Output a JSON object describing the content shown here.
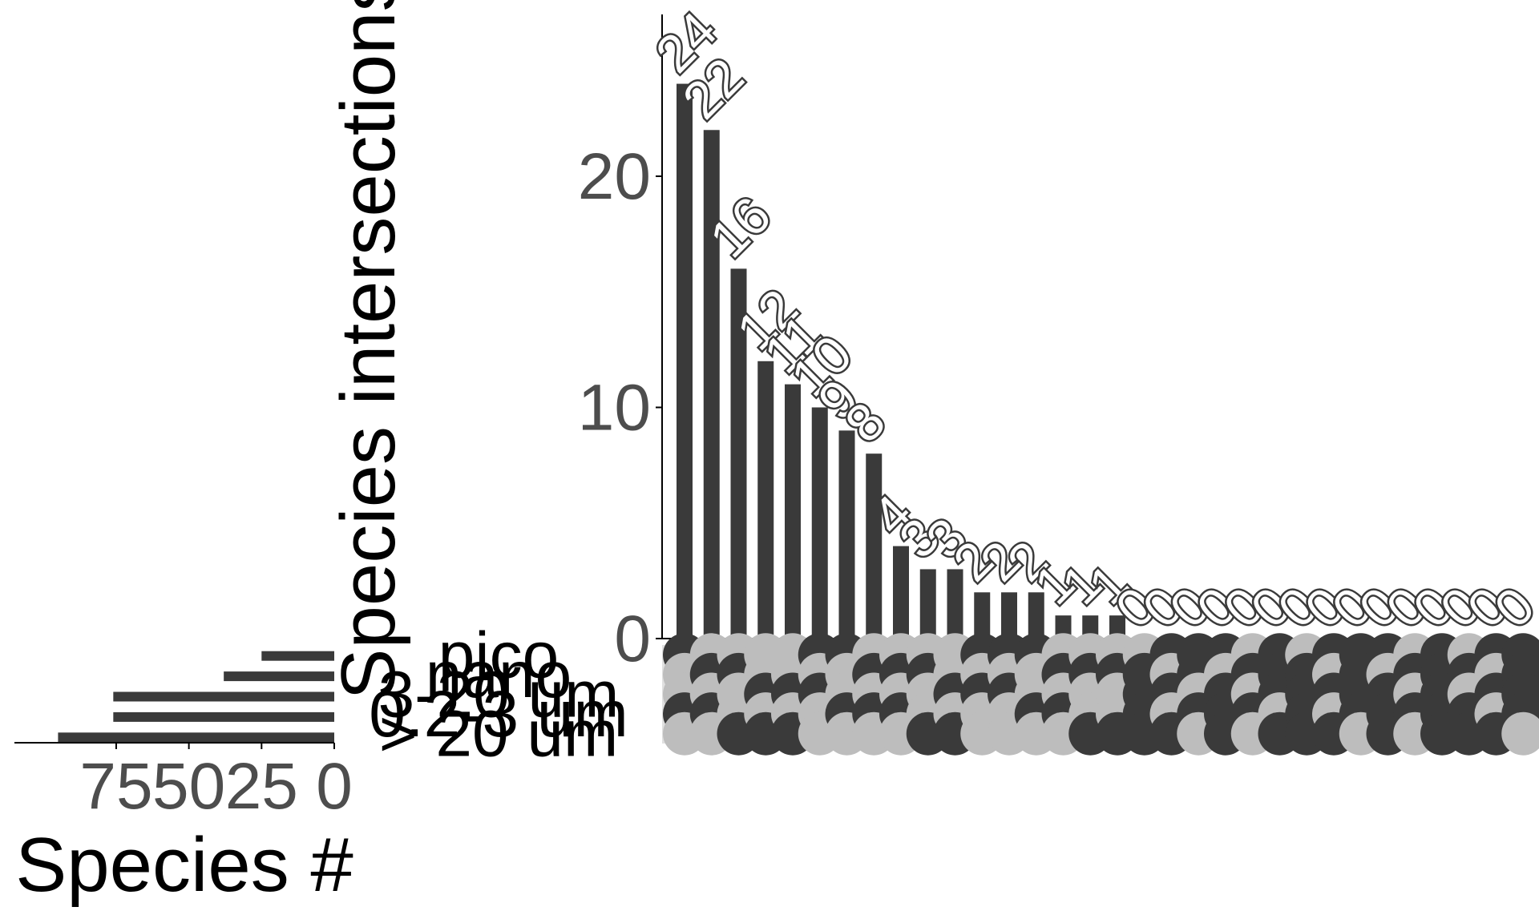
{
  "chart_data": {
    "type": "upset",
    "main": {
      "type": "bar",
      "ylabel": "Species intersections",
      "ylim": [
        0,
        27
      ],
      "yticks": [
        0,
        10,
        20
      ],
      "values": [
        24,
        22,
        16,
        12,
        11,
        10,
        9,
        8,
        4,
        3,
        3,
        2,
        2,
        2,
        1,
        1,
        1,
        0,
        0,
        0,
        0,
        0,
        0,
        0,
        0,
        0,
        0,
        0,
        0,
        0,
        0,
        0
      ],
      "labels": [
        "24",
        "22",
        "16",
        "12",
        "11",
        "10",
        "9",
        "8",
        "4",
        "3",
        "3",
        "2",
        "2",
        "2",
        "1",
        "1",
        "1",
        "0",
        "0",
        "0",
        "0",
        "0",
        "0",
        "0",
        "0",
        "0",
        "0",
        "0",
        "0",
        "0",
        "0",
        "0"
      ]
    },
    "sets": {
      "xlabel": "Species #",
      "xlim": [
        0,
        110
      ],
      "xticks": [
        75,
        50,
        25,
        0
      ],
      "tick_labels": [
        "75",
        "50",
        "25",
        "0"
      ],
      "names": [
        "pico",
        "nano",
        "3-20 um",
        "0.2-3 um",
        "> 20 um"
      ],
      "values": [
        25,
        38,
        76,
        76,
        95
      ]
    },
    "colors": {
      "bar": "#3a3a3a",
      "matrix_bg": "#e0e0e0",
      "dot_dark": "#3a3a3a",
      "dot_light": "#bdbdbd",
      "axis": "#000000"
    }
  }
}
